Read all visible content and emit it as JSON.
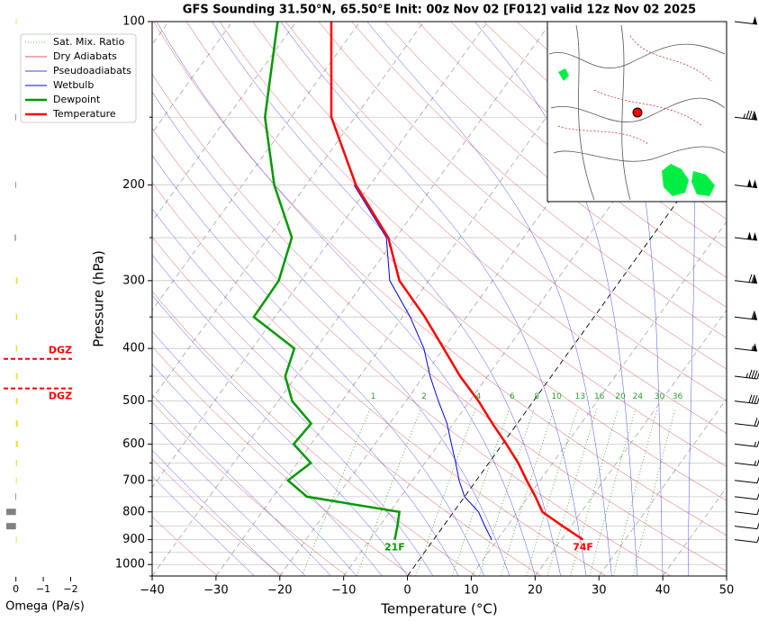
{
  "chart_data": {
    "type": "skewt",
    "title": "GFS Sounding 31.50°N, 65.50°E Init: 00z Nov 02 [F012] valid 12z Nov 02 2025",
    "xlabel": "Temperature (°C)",
    "ylabel": "Pressure (hPa)",
    "xlim": [
      -40,
      50
    ],
    "ylim": [
      1050,
      100
    ],
    "xticks": [
      {
        "value": -40,
        "label": "−40"
      },
      {
        "value": -30,
        "label": "−30"
      },
      {
        "value": -20,
        "label": "−20"
      },
      {
        "value": -10,
        "label": "−10"
      },
      0,
      10,
      20,
      30,
      40,
      50
    ],
    "yticks": [
      100,
      200,
      300,
      400,
      500,
      600,
      700,
      800,
      900,
      1000
    ],
    "yticks_minor": [
      150,
      250,
      350,
      450,
      550,
      650,
      750,
      850,
      950,
      1050
    ],
    "grid": true,
    "legend_position": "upper left",
    "pressure": [
      900,
      850,
      800,
      750,
      700,
      650,
      600,
      550,
      500,
      450,
      400,
      350,
      300,
      250,
      200,
      150,
      100
    ],
    "background": [
      {
        "name": "Sat. Mix. Ratio",
        "color": "#2ca02c",
        "kind": "mixing_ratio"
      },
      {
        "name": "Dry Adiabats",
        "color": "#d62728",
        "kind": "dry"
      },
      {
        "name": "Pseudoadiabats",
        "color": "#0000ff",
        "kind": "moist"
      }
    ],
    "mixing_ratio_labels": [
      1,
      2,
      4,
      6,
      8,
      10,
      13,
      16,
      20,
      24,
      30,
      36
    ],
    "series": [
      {
        "name": "Wetbulb",
        "color": "#0000ff",
        "width": 1,
        "values": [
          9.1,
          6.5,
          3.9,
          0.0,
          -2.7,
          -5.2,
          -8.0,
          -11.0,
          -14.9,
          -19.0,
          -23.1,
          -28.8,
          -36.1,
          -41.5,
          -52.5,
          null,
          null
        ]
      },
      {
        "name": "Dewpoint",
        "color": "#009900",
        "width": 2.5,
        "values": [
          -6.1,
          -7.2,
          -8.5,
          -24.7,
          -29.5,
          -27.9,
          -32.7,
          -32.3,
          -37.8,
          -41.7,
          -43.4,
          -53.3,
          -53.5,
          -56.3,
          -65.0,
          -74.1,
          -82.9
        ],
        "value_labels": [
          "21F",
          null,
          null,
          null,
          null,
          null,
          null,
          null,
          null,
          null,
          null,
          null,
          null,
          null,
          null,
          null,
          null
        ]
      },
      {
        "name": "Temperature",
        "color": "#ff0000",
        "width": 2.5,
        "values": [
          23.4,
          18.7,
          13.9,
          11.1,
          7.9,
          4.6,
          0.6,
          -3.9,
          -8.6,
          -14.3,
          -20.0,
          -26.5,
          -34.6,
          -41.2,
          -52.2,
          -63.7,
          -74.5
        ],
        "value_labels": [
          "74F",
          null,
          null,
          null,
          null,
          null,
          null,
          null,
          null,
          null,
          null,
          null,
          null,
          null,
          null,
          null,
          null
        ]
      }
    ],
    "wind_speed": [
      10,
      10,
      10,
      10,
      10,
      15,
      15,
      20,
      40,
      45,
      55,
      60,
      70,
      100,
      100,
      85,
      50
    ],
    "omega": {
      "xlabel": "Omega (Pa/s)",
      "xlim": [
        0.45,
        -2.05
      ],
      "xticks": [
        0,
        {
          "value": -1,
          "label": "−1"
        },
        {
          "value": -2,
          "label": "−2"
        }
      ],
      "values": [
        -0.03,
        0.35,
        0.35,
        0.02,
        -0.03,
        -0.04,
        -0.07,
        -0.07,
        -0.06,
        -0.06,
        -0.05,
        -0.05,
        -0.06,
        0.04,
        0.02,
        0.02,
        -0.02
      ],
      "rising_color": "#f0e030",
      "sinking_color": "#808080",
      "dgz_pressure": [
        418,
        474
      ],
      "dgz_labels": [
        "DGZ",
        "DGZ"
      ],
      "dgz_color": "#ff0000"
    }
  }
}
